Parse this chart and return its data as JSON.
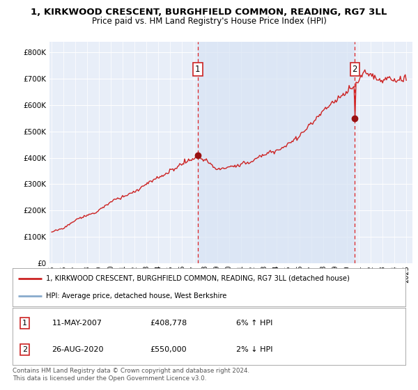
{
  "title_line1": "1, KIRKWOOD CRESCENT, BURGHFIELD COMMON, READING, RG7 3LL",
  "title_line2": "Price paid vs. HM Land Registry's House Price Index (HPI)",
  "ylabel_ticks": [
    "£0",
    "£100K",
    "£200K",
    "£300K",
    "£400K",
    "£500K",
    "£600K",
    "£700K",
    "£800K"
  ],
  "ytick_values": [
    0,
    100000,
    200000,
    300000,
    400000,
    500000,
    600000,
    700000,
    800000
  ],
  "ylim": [
    0,
    840000
  ],
  "xlim_start": 1994.8,
  "xlim_end": 2025.5,
  "xticks": [
    1995,
    1996,
    1997,
    1998,
    1999,
    2000,
    2001,
    2002,
    2003,
    2004,
    2005,
    2006,
    2007,
    2008,
    2009,
    2010,
    2011,
    2012,
    2013,
    2014,
    2015,
    2016,
    2017,
    2018,
    2019,
    2020,
    2021,
    2022,
    2023,
    2024,
    2025
  ],
  "bg_color": "#e8eef8",
  "bg_color_shaded": "#d8e4f4",
  "grid_color": "#ffffff",
  "price_line_color": "#cc2222",
  "hpi_line_color": "#88aacc",
  "sale1_x": 2007.36,
  "sale1_y": 408778,
  "sale2_x": 2020.65,
  "sale2_y": 550000,
  "legend_label1": "1, KIRKWOOD CRESCENT, BURGHFIELD COMMON, READING, RG7 3LL (detached house)",
  "legend_label2": "HPI: Average price, detached house, West Berkshire",
  "table_row1": [
    "1",
    "11-MAY-2007",
    "£408,778",
    "6% ↑ HPI"
  ],
  "table_row2": [
    "2",
    "26-AUG-2020",
    "£550,000",
    "2% ↓ HPI"
  ],
  "footer": "Contains HM Land Registry data © Crown copyright and database right 2024.\nThis data is licensed under the Open Government Licence v3.0."
}
